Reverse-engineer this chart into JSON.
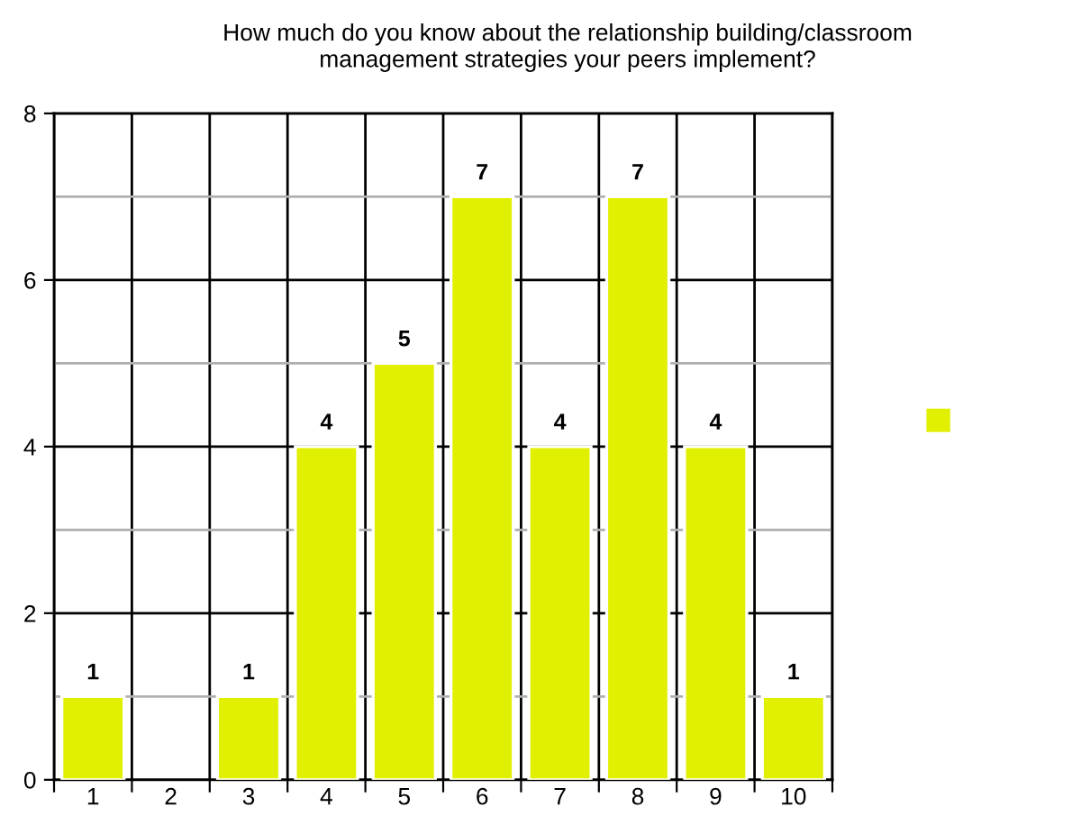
{
  "chart_data": {
    "type": "bar",
    "title": "How much do you know about the relationship building/classroom\nmanagement strategies your peers implement?",
    "categories": [
      "1",
      "2",
      "3",
      "4",
      "5",
      "6",
      "7",
      "8",
      "9",
      "10"
    ],
    "series": [
      {
        "color": "#e1f000",
        "values": [
          1,
          0,
          1,
          4,
          5,
          7,
          4,
          7,
          4,
          1
        ],
        "value_labels": [
          "1",
          null,
          "1",
          "4",
          "5",
          "7",
          "4",
          "7",
          "4",
          "1"
        ]
      }
    ],
    "ylim": [
      0,
      8
    ],
    "yticks": [
      0,
      {
        "value": 1,
        "label": null
      },
      2,
      {
        "value": 3,
        "label": null
      },
      4,
      {
        "value": 5,
        "label": null
      },
      6,
      {
        "value": 7,
        "label": null
      },
      8
    ],
    "grid": true
  }
}
